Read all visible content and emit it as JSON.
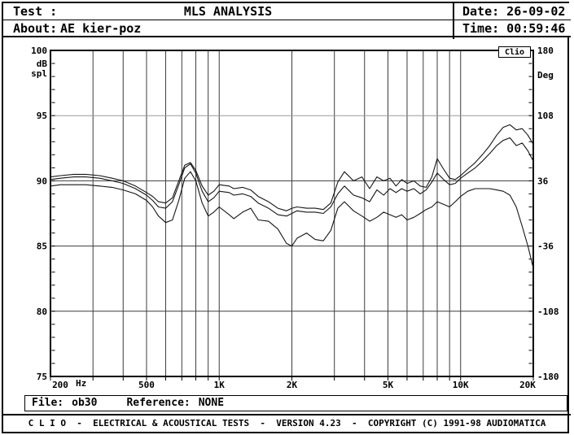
{
  "header": {
    "test_label": "Test :",
    "title": "MLS ANALYSIS",
    "about_label": "About:",
    "about_value": "AE kier-poz",
    "date_text": "Date: 26-09-02",
    "time_text": "Time: 00:59:46"
  },
  "file_bar": {
    "file_label": "File:",
    "file_value": "ob30",
    "reference_label": "Reference:",
    "reference_value": "NONE"
  },
  "footer": {
    "credits": "C L I O  -  ELECTRICAL & ACOUSTICAL TESTS  -  VERSION 4.23  -  COPYRIGHT (C) 1991-98 AUDIOMATICA"
  },
  "colors": {
    "background": "#ffffff",
    "frame": "#000000",
    "grid": "#3c3c3c",
    "grid_light": "#9a9a9a",
    "curve": "#141414"
  },
  "chart_data": {
    "type": "line",
    "title": "MLS ANALYSIS",
    "watermark": "Clio",
    "grid": true,
    "x_axis": {
      "scale": "log",
      "min": 200,
      "max": 20000,
      "unit": "Hz",
      "tick_values": [
        200,
        500,
        1000,
        2000,
        5000,
        10000,
        20000
      ],
      "tick_labels": [
        "200",
        "500",
        "1K",
        "2K",
        "5K",
        "10K",
        "20K"
      ],
      "gridline_values": [
        300,
        400,
        500,
        600,
        700,
        800,
        900,
        1000,
        2000,
        3000,
        4000,
        5000,
        6000,
        7000,
        8000,
        9000,
        10000
      ]
    },
    "y_left": {
      "unit_label": "dB\nspl",
      "min": 75,
      "max": 100,
      "ticks": [
        100,
        95,
        90,
        85,
        80,
        75
      ]
    },
    "y_right": {
      "unit_label": "Deg",
      "min": -180,
      "max": 180,
      "ticks": [
        180,
        108,
        36,
        -36,
        -108,
        -180
      ]
    },
    "series": [
      {
        "name": "spl-curve-1",
        "x": [
          200,
          220,
          250,
          280,
          320,
          360,
          400,
          450,
          500,
          530,
          560,
          600,
          640,
          680,
          720,
          760,
          800,
          850,
          900,
          950,
          1000,
          1100,
          1150,
          1250,
          1350,
          1450,
          1600,
          1750,
          1900,
          2000,
          2100,
          2300,
          2500,
          2700,
          2900,
          3100,
          3300,
          3600,
          3900,
          4200,
          4500,
          4800,
          5100,
          5400,
          5700,
          6000,
          6400,
          6800,
          7200,
          7600,
          8000,
          8500,
          9000,
          9500,
          10000,
          10700,
          11500,
          12300,
          13200,
          14100,
          15000,
          16000,
          17000,
          18000,
          19000,
          20000
        ],
        "y": [
          90.3,
          90.4,
          90.5,
          90.5,
          90.4,
          90.2,
          90.0,
          89.6,
          89.1,
          88.8,
          88.4,
          88.3,
          88.7,
          90.0,
          91.2,
          91.4,
          90.8,
          89.6,
          88.9,
          89.2,
          89.7,
          89.6,
          89.4,
          89.5,
          89.3,
          88.8,
          88.4,
          87.9,
          87.7,
          87.9,
          88.0,
          87.9,
          87.9,
          87.8,
          88.3,
          89.9,
          90.7,
          90.0,
          90.3,
          89.4,
          90.3,
          90.0,
          90.2,
          89.6,
          90.1,
          89.8,
          90.0,
          89.6,
          89.5,
          90.3,
          91.7,
          90.9,
          90.2,
          90.1,
          90.4,
          90.9,
          91.4,
          92.0,
          92.7,
          93.5,
          94.1,
          94.3,
          93.9,
          94.0,
          93.5,
          92.8
        ]
      },
      {
        "name": "spl-curve-2",
        "x": [
          200,
          220,
          250,
          280,
          320,
          360,
          400,
          450,
          500,
          530,
          560,
          600,
          640,
          680,
          720,
          760,
          800,
          850,
          900,
          950,
          1000,
          1100,
          1150,
          1250,
          1350,
          1450,
          1600,
          1750,
          1900,
          2000,
          2100,
          2300,
          2500,
          2700,
          2900,
          3100,
          3300,
          3600,
          3900,
          4200,
          4500,
          4800,
          5100,
          5400,
          5700,
          6000,
          6400,
          6800,
          7200,
          7600,
          8000,
          8500,
          9000,
          9500,
          10000,
          10700,
          11500,
          12300,
          13200,
          14100,
          15000,
          16000,
          17000,
          18000,
          19000,
          20000
        ],
        "y": [
          90.1,
          90.2,
          90.3,
          90.3,
          90.2,
          90.0,
          89.8,
          89.4,
          88.9,
          88.5,
          88.0,
          87.9,
          88.4,
          89.7,
          91.0,
          91.3,
          90.6,
          89.2,
          88.4,
          88.7,
          89.2,
          89.1,
          88.9,
          89.0,
          88.8,
          88.3,
          87.9,
          87.4,
          87.3,
          87.5,
          87.7,
          87.6,
          87.6,
          87.5,
          88.0,
          89.0,
          89.6,
          88.9,
          88.7,
          88.4,
          89.3,
          88.9,
          89.4,
          89.1,
          89.4,
          89.2,
          89.4,
          89.0,
          89.3,
          89.9,
          90.6,
          90.1,
          89.7,
          89.8,
          90.2,
          90.6,
          91.0,
          91.5,
          92.1,
          92.7,
          93.1,
          93.3,
          92.7,
          92.9,
          92.3,
          91.5
        ]
      },
      {
        "name": "spl-curve-3",
        "x": [
          200,
          220,
          250,
          280,
          320,
          360,
          400,
          450,
          500,
          530,
          560,
          600,
          640,
          680,
          720,
          760,
          800,
          850,
          900,
          950,
          1000,
          1100,
          1150,
          1250,
          1350,
          1450,
          1600,
          1750,
          1900,
          2000,
          2100,
          2300,
          2500,
          2700,
          2900,
          3100,
          3300,
          3600,
          3900,
          4200,
          4500,
          4800,
          5100,
          5400,
          5700,
          6000,
          6400,
          6800,
          7200,
          7600,
          8000,
          8500,
          9000,
          9500,
          10000,
          10700,
          11500,
          12300,
          13200,
          14100,
          15000,
          16000,
          17000,
          18000,
          19000,
          20000
        ],
        "y": [
          89.6,
          89.7,
          89.7,
          89.7,
          89.6,
          89.5,
          89.3,
          89.0,
          88.5,
          88.0,
          87.3,
          86.8,
          87.0,
          88.5,
          90.2,
          90.7,
          90.0,
          88.3,
          87.3,
          87.6,
          88.0,
          87.4,
          87.1,
          87.6,
          87.9,
          87.0,
          86.9,
          86.3,
          85.2,
          85.0,
          85.6,
          86.0,
          85.5,
          85.4,
          86.2,
          87.9,
          88.4,
          87.7,
          87.3,
          86.9,
          87.2,
          87.6,
          87.4,
          87.2,
          87.4,
          87.0,
          87.2,
          87.5,
          87.8,
          88.0,
          88.4,
          88.2,
          88.0,
          88.4,
          88.8,
          89.2,
          89.4,
          89.4,
          89.4,
          89.3,
          89.2,
          88.9,
          88.0,
          86.5,
          85.0,
          83.3
        ]
      }
    ],
    "ylim_left": [
      75,
      100
    ],
    "ylim_right": [
      -180,
      180
    ],
    "legend": null
  }
}
